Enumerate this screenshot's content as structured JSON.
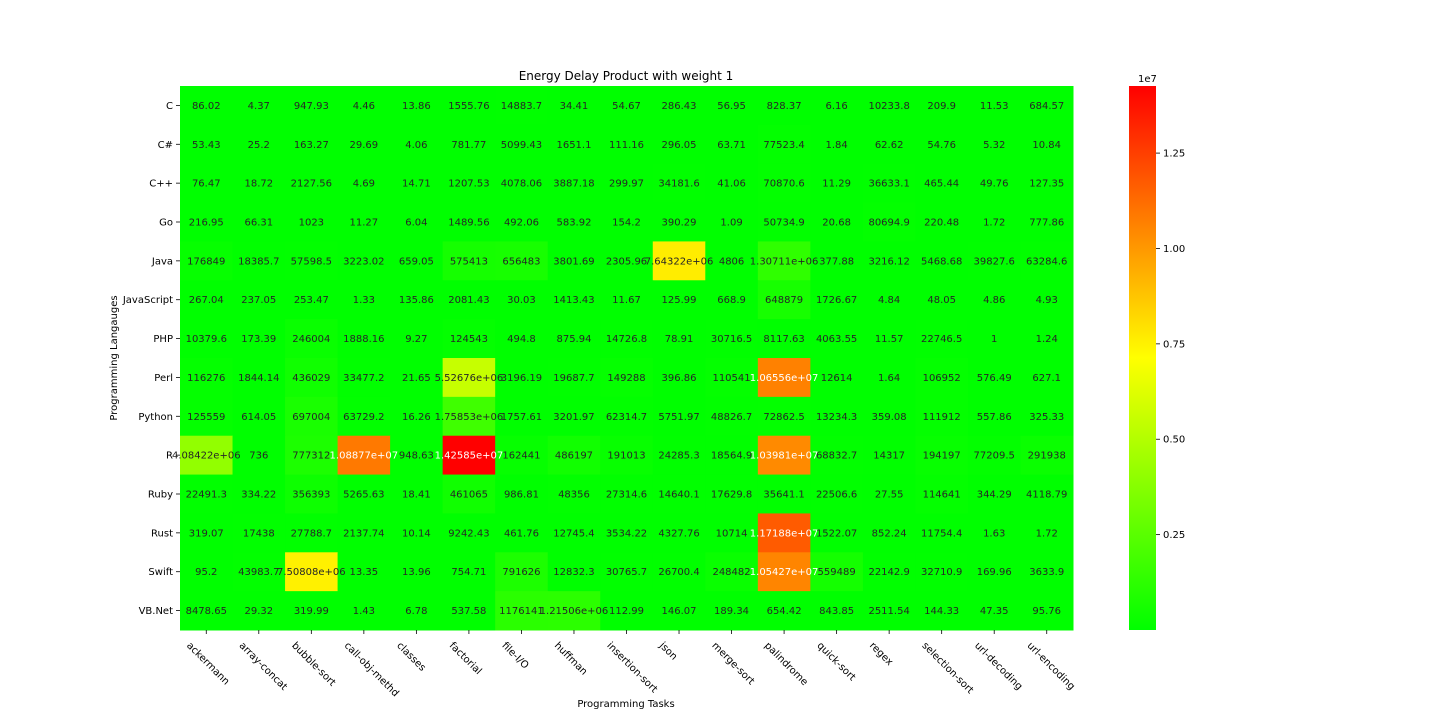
{
  "chart_data": {
    "type": "heatmap",
    "title": "Energy Delay Product with weight 1",
    "xlabel": "Programming Tasks",
    "ylabel": "Programming Langauges",
    "x_categories": [
      "ackermann",
      "array-concat",
      "bubble-sort",
      "call-obj-methd",
      "classes",
      "factorial",
      "file-I/O",
      "huffman",
      "insertion-sort",
      "json",
      "merge-sort",
      "palindrome",
      "quick-sort",
      "regex",
      "selection-sort",
      "url-decoding",
      "url-encoding"
    ],
    "y_categories": [
      "C",
      "C#",
      "C++",
      "Go",
      "Java",
      "JavaScript",
      "PHP",
      "Perl",
      "Python",
      "R",
      "Ruby",
      "Rust",
      "Swift",
      "VB.Net"
    ],
    "labels": [
      [
        "86.02",
        "4.37",
        "947.93",
        "4.46",
        "13.86",
        "1555.76",
        "14883.7",
        "34.41",
        "54.67",
        "286.43",
        "56.95",
        "828.37",
        "6.16",
        "10233.8",
        "209.9",
        "11.53",
        "684.57"
      ],
      [
        "53.43",
        "25.2",
        "163.27",
        "29.69",
        "4.06",
        "781.77",
        "5099.43",
        "1651.1",
        "111.16",
        "296.05",
        "63.71",
        "77523.4",
        "1.84",
        "62.62",
        "54.76",
        "5.32",
        "10.84"
      ],
      [
        "76.47",
        "18.72",
        "2127.56",
        "4.69",
        "14.71",
        "1207.53",
        "4078.06",
        "3887.18",
        "299.97",
        "34181.6",
        "41.06",
        "70870.6",
        "11.29",
        "36633.1",
        "465.44",
        "49.76",
        "127.35"
      ],
      [
        "216.95",
        "66.31",
        "1023",
        "11.27",
        "6.04",
        "1489.56",
        "492.06",
        "583.92",
        "154.2",
        "390.29",
        "1.09",
        "50734.9",
        "20.68",
        "80694.9",
        "220.48",
        "1.72",
        "777.86"
      ],
      [
        "176849",
        "18385.7",
        "57598.5",
        "3223.02",
        "659.05",
        "575413",
        "656483",
        "3801.69",
        "2305.96",
        "7.64322e+06",
        "4806",
        "1.30711e+06",
        "377.88",
        "3216.12",
        "5468.68",
        "39827.6",
        "63284.6"
      ],
      [
        "267.04",
        "237.05",
        "253.47",
        "1.33",
        "135.86",
        "2081.43",
        "30.03",
        "1413.43",
        "11.67",
        "125.99",
        "668.9",
        "648879",
        "1726.67",
        "4.84",
        "48.05",
        "4.86",
        "4.93"
      ],
      [
        "10379.6",
        "173.39",
        "246004",
        "1888.16",
        "9.27",
        "124543",
        "494.8",
        "875.94",
        "14726.8",
        "78.91",
        "30716.5",
        "8117.63",
        "4063.55",
        "11.57",
        "22746.5",
        "1",
        "1.24"
      ],
      [
        "116276",
        "1844.14",
        "436029",
        "33477.2",
        "21.65",
        "5.52676e+06",
        "3196.19",
        "19687.7",
        "149288",
        "396.86",
        "110541",
        "1.06556e+07",
        "12614",
        "1.64",
        "106952",
        "576.49",
        "627.1"
      ],
      [
        "125559",
        "614.05",
        "697004",
        "63729.2",
        "16.26",
        "1.75853e+06",
        "1757.61",
        "3201.97",
        "62314.7",
        "5751.97",
        "48826.7",
        "72862.5",
        "13234.3",
        "359.08",
        "111912",
        "557.86",
        "325.33"
      ],
      [
        "4.08422e+06",
        "736",
        "777312",
        "1.08877e+07",
        "948.63",
        "1.42585e+07",
        "162441",
        "486197",
        "191013",
        "24285.3",
        "18564.9",
        "1.03981e+07",
        "68832.7",
        "14317",
        "194197",
        "77209.5",
        "291938"
      ],
      [
        "22491.3",
        "334.22",
        "356393",
        "5265.63",
        "18.41",
        "461065",
        "986.81",
        "48356",
        "27314.6",
        "14640.1",
        "17629.8",
        "35641.1",
        "22506.6",
        "27.55",
        "114641",
        "344.29",
        "4118.79"
      ],
      [
        "319.07",
        "17438",
        "27788.7",
        "2137.74",
        "10.14",
        "9242.43",
        "461.76",
        "12745.4",
        "3534.22",
        "4327.76",
        "10714",
        "1.17188e+07",
        "1522.07",
        "852.24",
        "11754.4",
        "1.63",
        "1.72"
      ],
      [
        "95.2",
        "43983.7",
        "7.50808e+06",
        "13.35",
        "13.96",
        "754.71",
        "791626",
        "12832.3",
        "30765.7",
        "26700.4",
        "248482",
        "1.05427e+07",
        "559489",
        "22142.9",
        "32710.9",
        "169.96",
        "3633.9"
      ],
      [
        "8478.65",
        "29.32",
        "319.99",
        "1.43",
        "6.78",
        "537.58",
        "1176141",
        "1.21506e+06",
        "112.99",
        "146.07",
        "189.34",
        "654.42",
        "843.85",
        "2511.54",
        "144.33",
        "47.35",
        "95.76"
      ]
    ],
    "colorbar": {
      "ticks": [
        0.25,
        0.5,
        0.75,
        1.0,
        1.25
      ],
      "tick_labels": [
        "0.25",
        "0.50",
        "0.75",
        "1.00",
        "1.25"
      ],
      "offset_label": "1e7",
      "range": [
        0,
        14258500
      ],
      "colors": [
        "#00ff00",
        "#ffff00",
        "#ff0000"
      ]
    }
  }
}
